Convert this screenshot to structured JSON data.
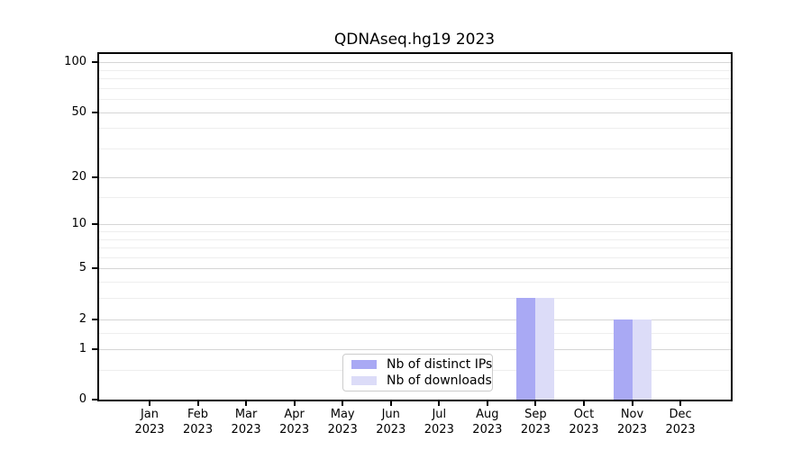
{
  "title": "QDNAseq.hg19 2023",
  "legend": {
    "items": [
      {
        "label": "Nb of distinct IPs",
        "color": "#a9a9f4"
      },
      {
        "label": "Nb of downloads",
        "color": "#dcdcf8"
      }
    ]
  },
  "chart_data": {
    "type": "bar",
    "title": "QDNAseq.hg19 2023",
    "categories": [
      "Jan",
      "Feb",
      "Mar",
      "Apr",
      "May",
      "Jun",
      "Jul",
      "Aug",
      "Sep",
      "Oct",
      "Nov",
      "Dec"
    ],
    "x_tick_year": "2023",
    "series": [
      {
        "name": "Nb of distinct IPs",
        "color": "#a9a9f4",
        "values": [
          0,
          0,
          0,
          0,
          0,
          0,
          0,
          0,
          3,
          0,
          2,
          0
        ]
      },
      {
        "name": "Nb of downloads",
        "color": "#dcdcf8",
        "values": [
          0,
          0,
          0,
          0,
          0,
          0,
          0,
          0,
          3,
          0,
          2,
          0
        ]
      }
    ],
    "xlabel": "",
    "ylabel": "",
    "y_axis": {
      "scale": "log10(1+x)",
      "major_ticks": [
        0,
        1,
        2,
        5,
        10,
        20,
        50,
        100
      ],
      "minor_ticks": [
        0.5,
        1.5,
        3,
        4,
        6,
        7,
        8,
        9,
        15,
        30,
        40,
        60,
        70,
        80,
        90
      ],
      "ylim": [
        0,
        113
      ]
    },
    "grid": "horizontal",
    "legend_position": "inside-bottom-center-left"
  },
  "colors": {
    "bar_distinct_ips": "#a9a9f4",
    "bar_downloads": "#dcdcf8",
    "grid_major": "#d6d6d6",
    "grid_minor": "#eeeeee",
    "axis": "#000000",
    "tick_label": "#000000",
    "legend_border": "#cccccc",
    "background": "#ffffff"
  }
}
